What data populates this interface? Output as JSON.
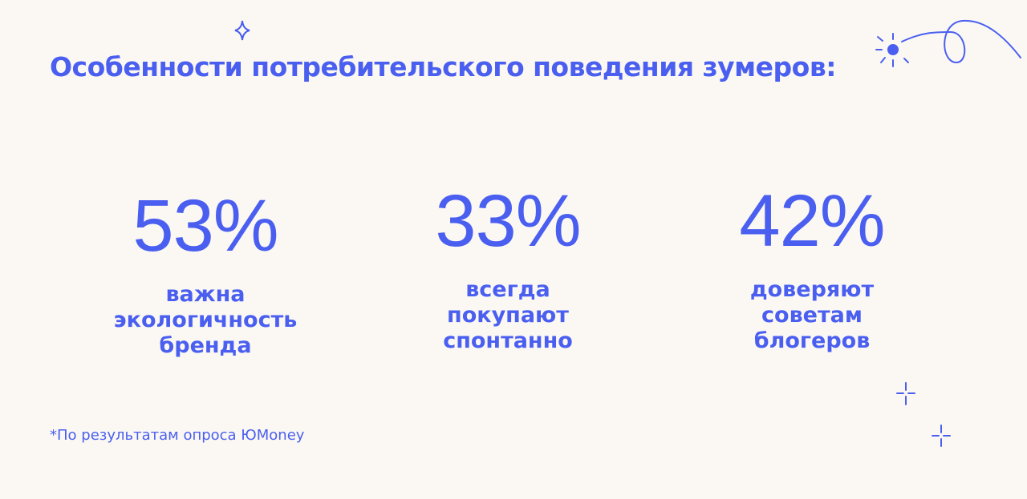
{
  "title": "Особенности потребительского поведения зумеров:",
  "stats": [
    {
      "value": "53%",
      "lines": [
        "важна",
        "экологичность",
        "бренда"
      ]
    },
    {
      "value": "33%",
      "lines": [
        "всегда",
        "покупают",
        "спонтанно"
      ]
    },
    {
      "value": "42%",
      "lines": [
        "доверяют",
        "советам",
        "блогеров"
      ]
    }
  ],
  "footnote": "*По результатам опроса ЮMoney"
}
